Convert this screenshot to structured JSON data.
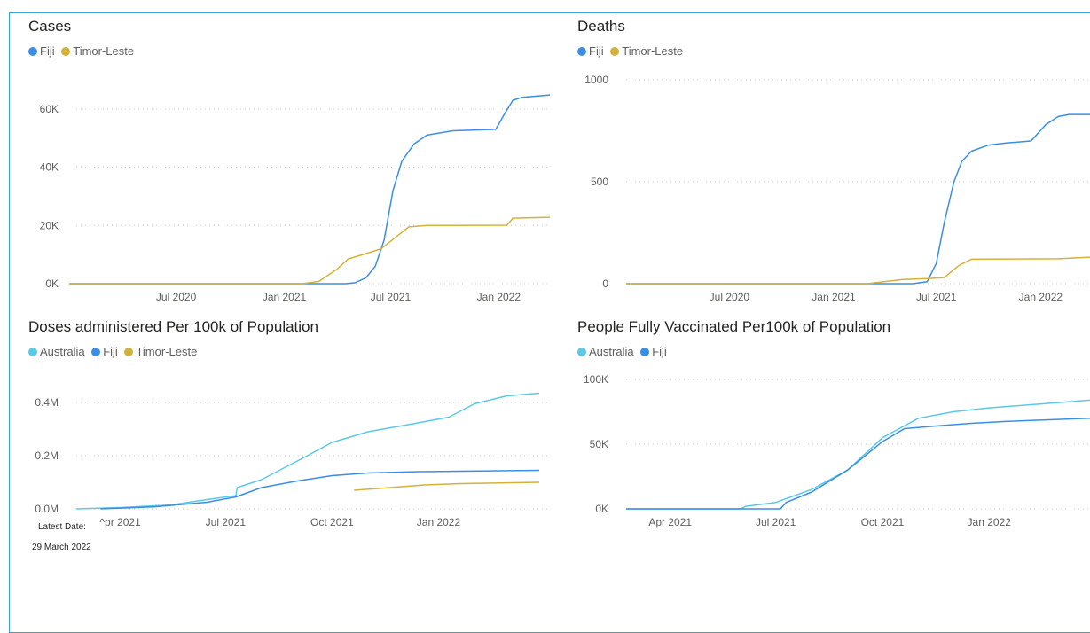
{
  "colors": {
    "australia": "#5bc8e8",
    "fiji": "#3a8ee6",
    "timor": "#d4b13a",
    "grid": "#c8c6c4",
    "axis_text": "#605e5c"
  },
  "footer": {
    "latest_label": "Latest Date:",
    "latest_value": "29 March 2022"
  },
  "chart_data": [
    {
      "type": "line",
      "title": "Cases",
      "series": [
        {
          "name": "Fiji",
          "color_key": "fiji",
          "points": [
            [
              "2020-01-01",
              0
            ],
            [
              "2021-04-15",
              0
            ],
            [
              "2021-05-01",
              300
            ],
            [
              "2021-05-20",
              2000
            ],
            [
              "2021-06-05",
              6000
            ],
            [
              "2021-06-20",
              15000
            ],
            [
              "2021-07-05",
              32000
            ],
            [
              "2021-07-20",
              42000
            ],
            [
              "2021-08-10",
              48000
            ],
            [
              "2021-09-01",
              51000
            ],
            [
              "2021-10-15",
              52500
            ],
            [
              "2021-12-27",
              53000
            ],
            [
              "2022-01-10",
              58000
            ],
            [
              "2022-01-25",
              63000
            ],
            [
              "2022-02-10",
              64000
            ],
            [
              "2022-03-29",
              64800
            ]
          ]
        },
        {
          "name": "Timor-Leste",
          "color_key": "timor",
          "points": [
            [
              "2020-01-01",
              0
            ],
            [
              "2021-02-01",
              0
            ],
            [
              "2021-03-01",
              800
            ],
            [
              "2021-04-01",
              5000
            ],
            [
              "2021-04-20",
              8500
            ],
            [
              "2021-05-15",
              10000
            ],
            [
              "2021-06-15",
              12000
            ],
            [
              "2021-07-10",
              16000
            ],
            [
              "2021-08-01",
              19500
            ],
            [
              "2021-09-01",
              20000
            ],
            [
              "2022-01-15",
              20100
            ],
            [
              "2022-01-25",
              22500
            ],
            [
              "2022-03-29",
              22800
            ]
          ]
        }
      ],
      "yticks": [
        [
          0,
          "0K"
        ],
        [
          20000,
          "20K"
        ],
        [
          40000,
          "40K"
        ],
        [
          60000,
          "60K"
        ]
      ],
      "xticks": [
        [
          "2020-07-01",
          "Jul 2020"
        ],
        [
          "2021-01-01",
          "Jan 2021"
        ],
        [
          "2021-07-01",
          "Jul 2021"
        ],
        [
          "2022-01-01",
          "Jan 2022"
        ]
      ]
    },
    {
      "type": "line",
      "title": "Deaths",
      "series": [
        {
          "name": "Fiji",
          "color_key": "fiji",
          "points": [
            [
              "2020-01-01",
              0
            ],
            [
              "2021-05-20",
              0
            ],
            [
              "2021-06-15",
              10
            ],
            [
              "2021-07-01",
              100
            ],
            [
              "2021-07-15",
              300
            ],
            [
              "2021-08-01",
              500
            ],
            [
              "2021-08-15",
              600
            ],
            [
              "2021-09-01",
              650
            ],
            [
              "2021-10-01",
              680
            ],
            [
              "2021-11-01",
              690
            ],
            [
              "2021-12-15",
              700
            ],
            [
              "2022-01-10",
              780
            ],
            [
              "2022-02-01",
              820
            ],
            [
              "2022-02-20",
              830
            ],
            [
              "2022-03-29",
              830
            ]
          ]
        },
        {
          "name": "Timor-Leste",
          "color_key": "timor",
          "points": [
            [
              "2020-01-01",
              0
            ],
            [
              "2021-03-01",
              0
            ],
            [
              "2021-05-01",
              20
            ],
            [
              "2021-06-15",
              25
            ],
            [
              "2021-07-15",
              30
            ],
            [
              "2021-08-10",
              90
            ],
            [
              "2021-09-01",
              120
            ],
            [
              "2022-02-01",
              122
            ],
            [
              "2022-03-29",
              130
            ]
          ]
        }
      ],
      "yticks": [
        [
          0,
          "0"
        ],
        [
          500,
          "500"
        ],
        [
          1000,
          "1000"
        ]
      ],
      "xticks": [
        [
          "2020-07-01",
          "Jul 2020"
        ],
        [
          "2021-01-01",
          "Jan 2021"
        ],
        [
          "2021-07-01",
          "Jul 2021"
        ],
        [
          "2022-01-01",
          "Jan 2022"
        ]
      ]
    },
    {
      "type": "line",
      "title": "Doses administered Per 100k of Population",
      "series": [
        {
          "name": "Australia",
          "color_key": "australia",
          "points": [
            [
              "2021-02-22",
              0
            ],
            [
              "2021-04-01",
              5000
            ],
            [
              "2021-05-15",
              15000
            ],
            [
              "2021-06-15",
              35000
            ],
            [
              "2021-07-10",
              50000
            ],
            [
              "2021-07-11",
              80000
            ],
            [
              "2021-08-01",
              110000
            ],
            [
              "2021-09-01",
              180000
            ],
            [
              "2021-10-01",
              250000
            ],
            [
              "2021-11-01",
              290000
            ],
            [
              "2021-12-10",
              320000
            ],
            [
              "2022-01-10",
              345000
            ],
            [
              "2022-02-01",
              395000
            ],
            [
              "2022-03-01",
              425000
            ],
            [
              "2022-03-29",
              435000
            ]
          ]
        },
        {
          "name": "Fiji",
          "color_key": "fiji",
          "points": [
            [
              "2021-03-15",
              0
            ],
            [
              "2021-05-01",
              8000
            ],
            [
              "2021-06-15",
              25000
            ],
            [
              "2021-07-10",
              45000
            ],
            [
              "2021-08-01",
              80000
            ],
            [
              "2021-09-01",
              105000
            ],
            [
              "2021-10-01",
              125000
            ],
            [
              "2021-11-01",
              135000
            ],
            [
              "2021-12-15",
              140000
            ],
            [
              "2022-03-29",
              145000
            ]
          ]
        },
        {
          "name": "Timor-Leste",
          "color_key": "timor",
          "points": [
            [
              "2021-10-20",
              70000
            ],
            [
              "2021-11-20",
              80000
            ],
            [
              "2021-12-20",
              90000
            ],
            [
              "2022-01-20",
              95000
            ],
            [
              "2022-03-29",
              100000
            ]
          ]
        }
      ],
      "yticks": [
        [
          0,
          "0.0M"
        ],
        [
          200000,
          "0.2M"
        ],
        [
          400000,
          "0.4M"
        ]
      ],
      "xticks": [
        [
          "2021-04-01",
          "^pr 2021"
        ],
        [
          "2021-07-01",
          "Jul 2021"
        ],
        [
          "2021-10-01",
          "Oct 2021"
        ],
        [
          "2022-01-01",
          "Jan 2022"
        ]
      ]
    },
    {
      "type": "line",
      "title": "People Fully Vaccinated Per100k of Population",
      "series": [
        {
          "name": "Australia",
          "color_key": "australia",
          "points": [
            [
              "2021-02-22",
              0
            ],
            [
              "2021-06-01",
              0
            ],
            [
              "2021-06-05",
              2000
            ],
            [
              "2021-07-01",
              5000
            ],
            [
              "2021-08-01",
              15000
            ],
            [
              "2021-09-01",
              30000
            ],
            [
              "2021-10-01",
              55000
            ],
            [
              "2021-11-01",
              70000
            ],
            [
              "2021-12-01",
              75000
            ],
            [
              "2022-01-01",
              78000
            ],
            [
              "2022-03-29",
              84000
            ]
          ]
        },
        {
          "name": "Fiji",
          "color_key": "fiji",
          "points": [
            [
              "2021-02-22",
              0
            ],
            [
              "2021-07-05",
              0
            ],
            [
              "2021-07-10",
              5000
            ],
            [
              "2021-08-01",
              13000
            ],
            [
              "2021-09-01",
              30000
            ],
            [
              "2021-10-01",
              52000
            ],
            [
              "2021-10-20",
              62000
            ],
            [
              "2021-11-15",
              64000
            ],
            [
              "2021-12-15",
              66000
            ],
            [
              "2022-01-15",
              67500
            ],
            [
              "2022-03-29",
              70000
            ]
          ]
        }
      ],
      "yticks": [
        [
          0,
          "0K"
        ],
        [
          50000,
          "50K"
        ],
        [
          100000,
          "100K"
        ]
      ],
      "xticks": [
        [
          "2021-04-01",
          "Apr 2021"
        ],
        [
          "2021-07-01",
          "Jul 2021"
        ],
        [
          "2021-10-01",
          "Oct 2021"
        ],
        [
          "2022-01-01",
          "Jan 2022"
        ]
      ]
    }
  ]
}
